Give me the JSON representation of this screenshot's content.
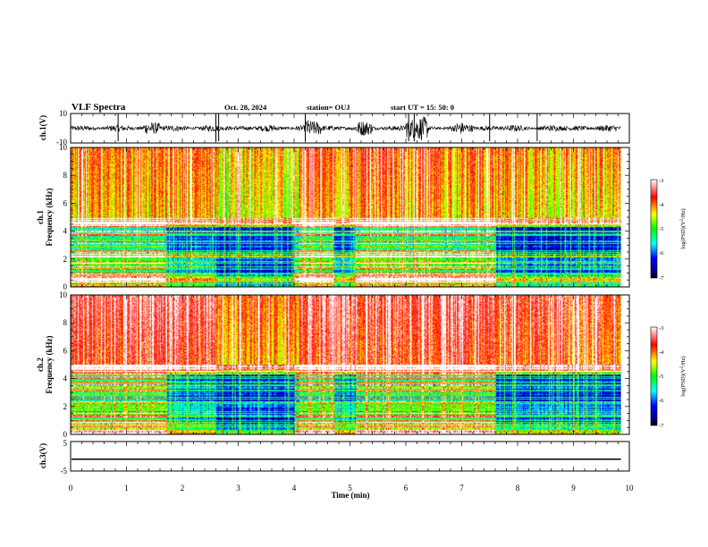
{
  "header": {
    "title": "VLF Spectra",
    "date": "Oct. 28, 2024",
    "station": "station= OUJ",
    "start": "start  UT =   15: 50: 0"
  },
  "chart_data": [
    {
      "type": "line",
      "name_label": "ch.1(V)",
      "ylim": [
        -10,
        10
      ],
      "yticks": [
        "10",
        "-10"
      ],
      "description_role": "waveform"
    },
    {
      "type": "heatmap",
      "ylabel": "Frequency (kHz)",
      "channel_label": "ch.1",
      "ylim": [
        0,
        10
      ],
      "yticks": [
        "0",
        "2",
        "4",
        "6",
        "8",
        "10"
      ],
      "colorbar": {
        "label": "log(PSD)(V²/Hz)",
        "range": [
          -7,
          -3
        ],
        "ticks": [
          "-3",
          "-4",
          "-5",
          "-6",
          "-7"
        ]
      }
    },
    {
      "type": "heatmap",
      "ylabel": "Frequency (kHz)",
      "channel_label": "ch.2",
      "ylim": [
        0,
        10
      ],
      "yticks": [
        "0",
        "2",
        "4",
        "6",
        "8",
        "10"
      ],
      "colorbar": {
        "label": "log(PSD)(V²/Hz)",
        "range": [
          -7,
          -3
        ],
        "ticks": [
          "-3",
          "-4",
          "-5",
          "-6",
          "-7"
        ]
      }
    },
    {
      "type": "line",
      "name_label": "ch.3(V)",
      "ylim": [
        -5,
        5
      ],
      "yticks": [
        "5",
        "-5"
      ],
      "value": -1.0
    }
  ],
  "xaxis": {
    "label": "Time (min)",
    "range": [
      0,
      10
    ],
    "ticks": [
      "0",
      "1",
      "2",
      "3",
      "4",
      "5",
      "6",
      "7",
      "8",
      "9",
      "10"
    ],
    "data_end": 9.85
  },
  "colorbar_unit_text": {
    "pre": "log(PSD)(V",
    "sup": "2",
    "post": "/Hz)"
  }
}
